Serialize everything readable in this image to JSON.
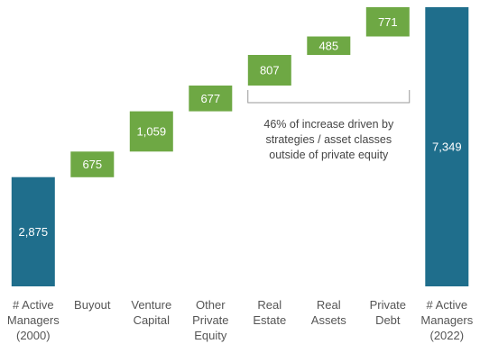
{
  "chart_data": {
    "type": "bar",
    "subtype": "waterfall",
    "categories": [
      [
        "# Active",
        "Managers",
        "(2000)"
      ],
      [
        "Buyout"
      ],
      [
        "Venture",
        "Capital"
      ],
      [
        "Other",
        "Private",
        "Equity"
      ],
      [
        "Real",
        "Estate"
      ],
      [
        "Real",
        "Assets"
      ],
      [
        "Private",
        "Debt"
      ],
      [
        "# Active",
        "Managers",
        "(2022)"
      ]
    ],
    "values": [
      2875,
      675,
      1059,
      677,
      807,
      485,
      771,
      7349
    ],
    "value_labels": [
      "2,875",
      "675",
      "1,059",
      "677",
      "807",
      "485",
      "771",
      "7,349"
    ],
    "kinds": [
      "total",
      "increment",
      "increment",
      "increment",
      "increment",
      "increment",
      "increment",
      "total"
    ],
    "colors": {
      "total": "#1f6e8c",
      "increment": "#6ea844",
      "bracket": "#999999"
    },
    "ylim": [
      0,
      7349
    ],
    "title": "",
    "xlabel": "",
    "ylabel": "",
    "grid": false,
    "legend": "none",
    "annotation": {
      "lines": [
        "46% of increase driven by",
        "strategies / asset classes",
        "outside of private equity"
      ],
      "spans_categories": [
        4,
        6
      ]
    }
  }
}
